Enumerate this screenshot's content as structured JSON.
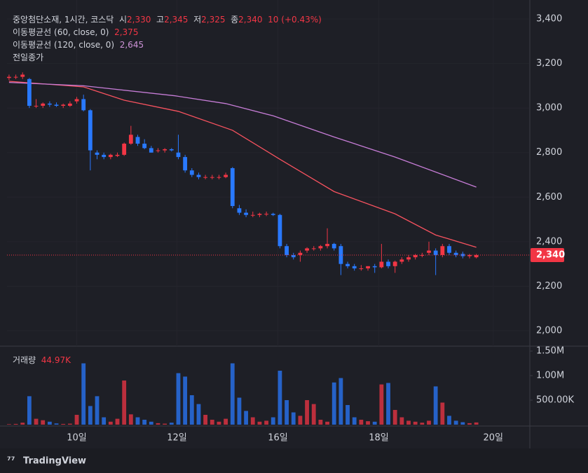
{
  "header": {
    "symbol": "중앙첨단소재, 1시간, 코스닥",
    "open_label": "시",
    "open": "2,330",
    "high_label": "고",
    "high": "2,345",
    "low_label": "저",
    "low": "2,325",
    "close_label": "종",
    "close": "2,340",
    "change": "10 (+0.43%)"
  },
  "legend": {
    "ma60": "이동평균선 (60, close, 0)",
    "ma60_value": "2,375",
    "ma120": "이동평균선 (120, close, 0)",
    "ma120_value": "2,645",
    "prev_close": "전일종가",
    "volume": "거래량",
    "volume_value": "44.97K"
  },
  "logo": "TradingView",
  "chart_data": {
    "type": "candlestick",
    "up_color": "#f23645",
    "down_color": "#2979ff",
    "xlim": [
      -0.3,
      76.8
    ],
    "xticks": [
      {
        "value": 10,
        "label": "10일"
      },
      {
        "value": 24.8,
        "label": "12일"
      },
      {
        "value": 39.7,
        "label": "16일"
      },
      {
        "value": 54.6,
        "label": "18일"
      },
      {
        "value": 71.5,
        "label": "20일"
      }
    ],
    "ylim": [
      1934,
      3485
    ],
    "yticks": [
      {
        "value": 2000,
        "label": "2,000"
      },
      {
        "value": 2200,
        "label": "2,200"
      },
      {
        "value": 2400,
        "label": "2,400"
      },
      {
        "value": 2600,
        "label": "2,600"
      },
      {
        "value": 2800,
        "label": "2,800"
      },
      {
        "value": 3000,
        "label": "3,000"
      },
      {
        "value": 3200,
        "label": "3,200"
      },
      {
        "value": 3400,
        "label": "3,400"
      }
    ],
    "last_price": {
      "value": 2340,
      "label": "2,340"
    },
    "open": [
      3135,
      3140,
      3140,
      3130,
      3010,
      3010,
      3020,
      3015,
      3010,
      3010,
      3030,
      3040,
      2990,
      2800,
      2790,
      2780,
      2785,
      2790,
      2840,
      2870,
      2840,
      2820,
      2810,
      2810,
      2815,
      2800,
      2780,
      2720,
      2700,
      2690,
      2690,
      2690,
      2690,
      2730,
      2550,
      2530,
      2520,
      2520,
      2525,
      2525,
      2520,
      2380,
      2340,
      2340,
      2360,
      2370,
      2370,
      2380,
      2390,
      2380,
      2300,
      2290,
      2280,
      2280,
      2290,
      2285,
      2310,
      2290,
      2310,
      2320,
      2330,
      2340,
      2350,
      2360,
      2340,
      2380,
      2350,
      2345,
      2335,
      2330
    ],
    "high": [
      3150,
      3150,
      3160,
      3135,
      3040,
      3025,
      3030,
      3025,
      3020,
      3030,
      3050,
      3060,
      2995,
      2810,
      2800,
      2795,
      2800,
      2845,
      2920,
      2880,
      2860,
      2830,
      2820,
      2820,
      2820,
      2880,
      2790,
      2730,
      2710,
      2700,
      2700,
      2700,
      2710,
      2735,
      2565,
      2545,
      2535,
      2530,
      2535,
      2530,
      2525,
      2390,
      2350,
      2360,
      2375,
      2380,
      2385,
      2460,
      2395,
      2390,
      2310,
      2300,
      2295,
      2290,
      2300,
      2390,
      2320,
      2315,
      2330,
      2340,
      2345,
      2350,
      2400,
      2370,
      2390,
      2390,
      2360,
      2355,
      2345,
      2345
    ],
    "low": [
      3125,
      3130,
      3130,
      3000,
      3000,
      3000,
      3005,
      3005,
      3000,
      3005,
      3020,
      2985,
      2720,
      2770,
      2770,
      2770,
      2780,
      2785,
      2835,
      2830,
      2815,
      2800,
      2800,
      2800,
      2805,
      2770,
      2710,
      2690,
      2680,
      2680,
      2680,
      2680,
      2685,
      2550,
      2520,
      2510,
      2510,
      2510,
      2515,
      2515,
      2370,
      2330,
      2320,
      2310,
      2350,
      2360,
      2360,
      2370,
      2360,
      2250,
      2280,
      2270,
      2270,
      2270,
      2260,
      2280,
      2280,
      2260,
      2300,
      2310,
      2320,
      2330,
      2340,
      2250,
      2330,
      2340,
      2330,
      2325,
      2325,
      2325
    ],
    "close": [
      3140,
      3140,
      3150,
      3010,
      3010,
      3020,
      3015,
      3010,
      3015,
      3020,
      3040,
      2990,
      2810,
      2790,
      2780,
      2790,
      2790,
      2840,
      2880,
      2840,
      2820,
      2800,
      2810,
      2815,
      2810,
      2780,
      2720,
      2700,
      2690,
      2690,
      2690,
      2690,
      2700,
      2560,
      2530,
      2520,
      2520,
      2525,
      2525,
      2520,
      2380,
      2340,
      2330,
      2350,
      2370,
      2370,
      2380,
      2390,
      2370,
      2300,
      2290,
      2280,
      2280,
      2290,
      2285,
      2310,
      2290,
      2310,
      2320,
      2330,
      2340,
      2340,
      2360,
      2340,
      2380,
      2350,
      2340,
      2335,
      2340,
      2340
    ],
    "volume": [
      10000,
      15000,
      40000,
      580000,
      120000,
      90000,
      60000,
      25000,
      15000,
      20000,
      200000,
      1250000,
      380000,
      580000,
      150000,
      60000,
      120000,
      900000,
      210000,
      150000,
      100000,
      60000,
      30000,
      20000,
      40000,
      1050000,
      980000,
      600000,
      420000,
      200000,
      100000,
      60000,
      120000,
      1250000,
      550000,
      280000,
      150000,
      60000,
      80000,
      150000,
      1100000,
      500000,
      250000,
      180000,
      500000,
      420000,
      100000,
      60000,
      860000,
      950000,
      400000,
      150000,
      100000,
      70000,
      60000,
      820000,
      850000,
      300000,
      150000,
      80000,
      60000,
      40000,
      80000,
      780000,
      450000,
      180000,
      80000,
      50000,
      30000,
      44970
    ],
    "vlim": [
      0,
      1586000
    ],
    "vticks": [
      {
        "value": 500000,
        "label": "500.00K"
      },
      {
        "value": 1000000,
        "label": "1.00M"
      },
      {
        "value": 1500000,
        "label": "1.50M"
      }
    ],
    "series": [
      {
        "name": "이동평균선 (60, close, 0)",
        "color": "#f7525f",
        "x": [
          0,
          11,
          17,
          25,
          33,
          40,
          48,
          57,
          63,
          69
        ],
        "values": [
          3120,
          3095,
          3035,
          2985,
          2900,
          2770,
          2625,
          2525,
          2430,
          2375
        ]
      },
      {
        "name": "이동평균선 (120, close, 0)",
        "color": "#c77dd7",
        "x": [
          0,
          11,
          24.5,
          32,
          39,
          48,
          57,
          69
        ],
        "values": [
          3115,
          3100,
          3055,
          3020,
          2965,
          2870,
          2780,
          2645
        ]
      }
    ]
  }
}
